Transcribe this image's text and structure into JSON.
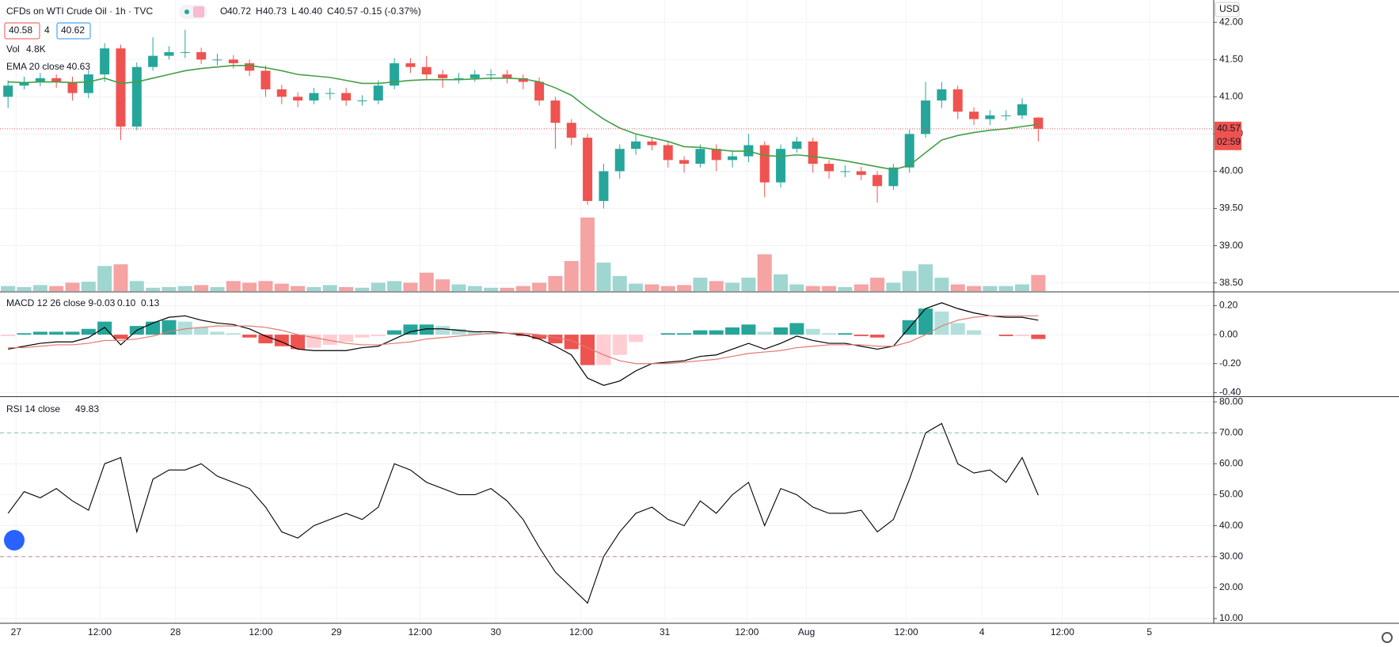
{
  "chart_data": [
    {
      "type": "candlestick",
      "title": "CFDs on WTI Crude Oil · 1h · TVC",
      "ohlc": [
        {
          "key": "O",
          "value": "40.72"
        },
        {
          "key": "H",
          "value": "40.73"
        },
        {
          "key": "L",
          "value": "40.40"
        },
        {
          "key": "C",
          "value": "40.57"
        }
      ],
      "change": "-0.15 (-0.37%)",
      "sell": "40.58",
      "spread": "4",
      "buy": "40.62",
      "currency": "USD",
      "countdown": "02:59",
      "up_color": "#26a69a",
      "down_color": "#ef5350",
      "open": [
        41.0,
        41.15,
        41.2,
        41.25,
        41.2,
        41.05,
        41.3,
        41.65,
        40.6,
        41.4,
        41.55,
        41.6,
        41.6,
        41.5,
        41.5,
        41.45,
        41.35,
        41.1,
        41.0,
        40.95,
        41.05,
        41.05,
        40.95,
        40.95,
        41.15,
        41.45,
        41.4,
        41.3,
        41.25,
        41.25,
        41.3,
        41.3,
        41.25,
        41.2,
        40.95,
        40.65,
        40.45,
        39.6,
        40.0,
        40.3,
        40.4,
        40.35,
        40.15,
        40.1,
        40.3,
        40.15,
        40.2,
        40.35,
        39.85,
        40.3,
        40.4,
        40.1,
        40.0,
        40.0,
        39.95,
        39.8,
        40.05,
        40.5,
        40.95,
        41.1,
        40.8,
        40.7,
        40.75,
        40.75,
        40.72
      ],
      "high": [
        41.22,
        41.27,
        41.32,
        41.3,
        41.27,
        41.36,
        41.72,
        41.7,
        41.46,
        41.8,
        41.68,
        41.9,
        41.66,
        41.58,
        41.56,
        41.5,
        41.42,
        41.16,
        41.06,
        41.12,
        41.12,
        41.12,
        41.02,
        41.22,
        41.52,
        41.52,
        41.55,
        41.36,
        41.32,
        41.36,
        41.37,
        41.36,
        41.3,
        41.26,
        41.0,
        40.7,
        40.5,
        40.1,
        40.36,
        40.5,
        40.46,
        40.4,
        40.2,
        40.36,
        40.36,
        40.26,
        40.5,
        40.4,
        40.36,
        40.46,
        40.45,
        40.15,
        40.08,
        40.06,
        40.0,
        40.1,
        40.56,
        41.2,
        41.2,
        41.15,
        40.86,
        40.82,
        40.82,
        40.98,
        40.73
      ],
      "low": [
        40.85,
        41.1,
        41.14,
        41.12,
        40.95,
        40.98,
        41.2,
        40.42,
        40.55,
        41.35,
        41.5,
        41.52,
        41.44,
        41.42,
        41.38,
        41.28,
        41.0,
        40.9,
        40.86,
        40.9,
        40.96,
        40.88,
        40.88,
        40.9,
        41.1,
        41.32,
        41.22,
        41.12,
        41.18,
        41.2,
        41.22,
        41.18,
        41.1,
        40.88,
        40.3,
        40.35,
        39.55,
        39.5,
        39.9,
        40.22,
        40.28,
        40.05,
        39.98,
        40.05,
        40.0,
        40.05,
        40.12,
        39.65,
        39.78,
        40.25,
        39.98,
        39.9,
        39.92,
        39.88,
        39.58,
        39.75,
        39.98,
        40.45,
        40.85,
        40.7,
        40.62,
        40.62,
        40.68,
        40.7,
        40.4
      ],
      "close": [
        41.15,
        41.2,
        41.25,
        41.2,
        41.05,
        41.3,
        41.65,
        40.6,
        41.4,
        41.55,
        41.6,
        41.6,
        41.5,
        41.5,
        41.45,
        41.35,
        41.1,
        41.0,
        40.95,
        41.05,
        41.05,
        40.95,
        40.95,
        41.15,
        41.45,
        41.4,
        41.3,
        41.25,
        41.25,
        41.3,
        41.3,
        41.25,
        41.2,
        40.95,
        40.65,
        40.45,
        39.6,
        40.0,
        40.3,
        40.4,
        40.35,
        40.15,
        40.1,
        40.3,
        40.15,
        40.2,
        40.35,
        39.85,
        40.3,
        40.4,
        40.1,
        40.0,
        40.0,
        39.95,
        39.8,
        40.05,
        40.5,
        40.95,
        41.1,
        40.8,
        40.7,
        40.75,
        40.75,
        40.9,
        40.57
      ],
      "ema": {
        "name": "EMA 20 close",
        "color": "#43a047",
        "values": [
          41.2,
          41.19,
          41.2,
          41.2,
          41.19,
          41.2,
          41.25,
          41.18,
          41.2,
          41.25,
          41.3,
          41.35,
          41.38,
          41.4,
          41.42,
          41.42,
          41.39,
          41.35,
          41.3,
          41.28,
          41.26,
          41.22,
          41.18,
          41.18,
          41.2,
          41.22,
          41.23,
          41.23,
          41.23,
          41.24,
          41.25,
          41.25,
          41.24,
          41.2,
          41.12,
          41.02,
          40.85,
          40.7,
          40.58,
          40.5,
          40.45,
          40.4,
          40.33,
          40.32,
          40.29,
          40.27,
          40.27,
          40.21,
          40.2,
          40.22,
          40.2,
          40.17,
          40.14,
          40.1,
          40.06,
          40.02,
          40.08,
          40.25,
          40.42,
          40.48,
          40.52,
          40.55,
          40.57,
          40.6,
          40.63
        ]
      },
      "volume": {
        "name": "Vol",
        "legend_value": {
          "value": 4800,
          "label": "4.8K"
        },
        "up_color": "#9fd6d0",
        "down_color": "#f5a3a3",
        "values": [
          1500,
          1200,
          1800,
          1500,
          2500,
          2800,
          7500,
          8000,
          3000,
          1000,
          1200,
          1500,
          1800,
          1200,
          3000,
          2500,
          3000,
          2200,
          1500,
          1200,
          1800,
          1200,
          1000,
          2500,
          3000,
          2500,
          5500,
          3500,
          2000,
          1500,
          1000,
          1000,
          1500,
          2500,
          4500,
          9000,
          22000,
          8500,
          4500,
          2200,
          2000,
          1500,
          1800,
          4000,
          3000,
          2500,
          4000,
          11000,
          5000,
          2000,
          1500,
          1500,
          1200,
          2000,
          4000,
          2500,
          6000,
          8000,
          4000,
          2000,
          1500,
          1500,
          1500,
          2000,
          4800
        ]
      },
      "xlim": [
        0,
        75.4
      ],
      "ylim": [
        38.39,
        42.3
      ],
      "yticks": [
        {
          "value": 42,
          "label": "42.00"
        },
        {
          "value": 41.5,
          "label": "41.50"
        },
        {
          "value": 41,
          "label": "41.00"
        },
        {
          "value": 40.5,
          "label": "40.50"
        },
        {
          "value": 40,
          "label": "40.00"
        },
        {
          "value": 39.5,
          "label": "39.50"
        },
        {
          "value": 39,
          "label": "39.00"
        },
        {
          "value": 38.5,
          "label": "38.50"
        }
      ],
      "grid": true
    },
    {
      "type": "macd",
      "title": "MACD 12 26 close 9",
      "legend_values": [
        "-0.03",
        "0.10",
        "0.13"
      ],
      "series": [
        {
          "color": "#000000",
          "values": [
            -0.1,
            -0.08,
            -0.06,
            -0.05,
            -0.05,
            -0.02,
            0.05,
            -0.07,
            0.03,
            0.08,
            0.12,
            0.13,
            0.1,
            0.08,
            0.07,
            0.04,
            -0.01,
            -0.05,
            -0.1,
            -0.11,
            -0.11,
            -0.11,
            -0.09,
            -0.08,
            -0.03,
            0.02,
            0.04,
            0.04,
            0.03,
            0.02,
            0.02,
            0.01,
            0.0,
            -0.03,
            -0.08,
            -0.14,
            -0.3,
            -0.35,
            -0.32,
            -0.25,
            -0.2,
            -0.19,
            -0.18,
            -0.15,
            -0.14,
            -0.1,
            -0.06,
            -0.1,
            -0.06,
            -0.01,
            -0.04,
            -0.06,
            -0.06,
            -0.08,
            -0.1,
            -0.08,
            0.05,
            0.18,
            0.22,
            0.18,
            0.15,
            0.13,
            0.12,
            0.12,
            0.1
          ]
        },
        {
          "color": "#e0796f",
          "values": [
            -0.09,
            -0.09,
            -0.08,
            -0.07,
            -0.07,
            -0.06,
            -0.04,
            -0.04,
            -0.03,
            -0.01,
            0.02,
            0.04,
            0.05,
            0.06,
            0.06,
            0.06,
            0.05,
            0.03,
            0.0,
            -0.02,
            -0.04,
            -0.06,
            -0.07,
            -0.07,
            -0.06,
            -0.05,
            -0.03,
            -0.02,
            -0.01,
            0.0,
            0.01,
            0.01,
            0.01,
            0.0,
            -0.02,
            -0.04,
            -0.09,
            -0.14,
            -0.18,
            -0.2,
            -0.2,
            -0.2,
            -0.19,
            -0.18,
            -0.17,
            -0.15,
            -0.13,
            -0.12,
            -0.11,
            -0.09,
            -0.08,
            -0.07,
            -0.07,
            -0.07,
            -0.08,
            -0.08,
            -0.05,
            0.0,
            0.06,
            0.1,
            0.12,
            0.13,
            0.13,
            0.13,
            0.13
          ]
        }
      ],
      "histogram": {
        "colors": [
          "#26a69a",
          "#b2dfdb",
          "#ffcdd2",
          "#ef5350"
        ],
        "values": [
          -0.01,
          0.01,
          0.02,
          0.02,
          0.02,
          0.04,
          0.09,
          -0.03,
          0.06,
          0.09,
          0.1,
          0.09,
          0.05,
          0.02,
          0.01,
          -0.02,
          -0.06,
          -0.08,
          -0.1,
          -0.09,
          -0.07,
          -0.05,
          -0.02,
          -0.01,
          0.03,
          0.07,
          0.07,
          0.06,
          0.04,
          0.02,
          0.01,
          0.0,
          -0.01,
          -0.03,
          -0.06,
          -0.1,
          -0.21,
          -0.21,
          -0.14,
          -0.05,
          0.0,
          0.01,
          0.01,
          0.03,
          0.03,
          0.05,
          0.07,
          0.02,
          0.05,
          0.08,
          0.04,
          0.01,
          0.01,
          -0.01,
          -0.02,
          0.0,
          0.1,
          0.18,
          0.16,
          0.08,
          0.03,
          0.0,
          -0.01,
          -0.01,
          -0.03
        ]
      },
      "xlim": [
        0,
        75.4
      ],
      "ylim": [
        -0.42,
        0.29
      ],
      "yticks": [
        {
          "value": 0.2,
          "label": "0.20"
        },
        {
          "value": 0,
          "label": "0.00"
        },
        {
          "value": -0.2,
          "label": "-0.20"
        },
        {
          "value": -0.4,
          "label": "-0.40"
        }
      ]
    },
    {
      "type": "rsi",
      "title": "RSI 14 close",
      "color": "#000000",
      "band_color": "#8fb8b4",
      "band_low_color": "#c98a8a",
      "values": [
        44,
        51,
        49,
        52,
        48,
        45,
        60,
        62,
        38,
        55,
        58,
        58,
        60,
        56,
        54,
        52,
        46,
        38,
        36,
        40,
        42,
        44,
        42,
        46,
        60,
        58,
        54,
        52,
        50,
        50,
        52,
        48,
        42,
        33,
        25,
        20,
        15,
        30,
        38,
        44,
        46,
        42,
        40,
        48,
        44,
        50,
        54,
        40,
        52,
        50,
        46,
        44,
        44,
        45,
        38,
        42,
        55,
        70,
        73,
        60,
        57,
        58,
        54,
        62,
        49.83
      ],
      "bands": [
        70,
        30
      ],
      "xlim": [
        0,
        75.4
      ],
      "ylim": [
        8.47,
        81.3
      ],
      "yticks": [
        {
          "value": 80,
          "label": "80.00"
        },
        {
          "value": 70,
          "label": "70.00"
        },
        {
          "value": 60,
          "label": "60.00"
        },
        {
          "value": 50,
          "label": "50.00"
        },
        {
          "value": 40,
          "label": "40.00"
        },
        {
          "value": 30,
          "label": "30.00"
        },
        {
          "value": 20,
          "label": "20.00"
        },
        {
          "value": 10,
          "label": "10.00"
        }
      ],
      "xticks": [
        {
          "value": 1.0,
          "label": "27"
        },
        {
          "value": 6.2,
          "label": "12:00"
        },
        {
          "value": 10.9,
          "label": "28"
        },
        {
          "value": 16.2,
          "label": "12:00"
        },
        {
          "value": 20.9,
          "label": "29"
        },
        {
          "value": 26.1,
          "label": "12:00"
        },
        {
          "value": 30.8,
          "label": "30"
        },
        {
          "value": 36.1,
          "label": "12:00"
        },
        {
          "value": 41.3,
          "label": "31"
        },
        {
          "value": 46.4,
          "label": "12:00"
        },
        {
          "value": 50.1,
          "label": "Aug"
        },
        {
          "value": 56.3,
          "label": "12:00"
        },
        {
          "value": 61.0,
          "label": "4"
        },
        {
          "value": 66.0,
          "label": "12:00"
        },
        {
          "value": 71.4,
          "label": "5"
        }
      ]
    }
  ]
}
